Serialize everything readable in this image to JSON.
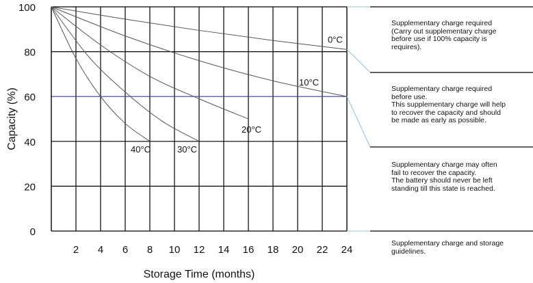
{
  "chart_data": {
    "type": "line",
    "xlabel": "Storage Time (months)",
    "ylabel": "Capacity (%)",
    "xlim": [
      0,
      24
    ],
    "ylim": [
      0,
      100
    ],
    "x_ticks": [
      "2",
      "4",
      "6",
      "8",
      "10",
      "12",
      "14",
      "16",
      "18",
      "20",
      "22",
      "24"
    ],
    "y_ticks": [
      "0",
      "20",
      "40",
      "60",
      "80",
      "100"
    ],
    "grid": true,
    "series": [
      {
        "name": "0°C",
        "x": [
          0,
          6,
          12,
          18,
          24
        ],
        "y": [
          100,
          94.5,
          89.5,
          85,
          81
        ]
      },
      {
        "name": "10°C",
        "x": [
          0,
          6,
          12,
          18,
          24
        ],
        "y": [
          100,
          87,
          76,
          67,
          60
        ]
      },
      {
        "name": "20°C",
        "x": [
          0,
          4,
          8,
          12,
          16
        ],
        "y": [
          100,
          83,
          69,
          59,
          50
        ]
      },
      {
        "name": "30°C",
        "x": [
          0,
          3,
          6,
          9,
          12
        ],
        "y": [
          100,
          78,
          62,
          49,
          40
        ]
      },
      {
        "name": "40°C",
        "x": [
          0,
          2,
          4,
          6,
          8
        ],
        "y": [
          100,
          77,
          60,
          48,
          40
        ]
      }
    ],
    "reference_lines": [
      80,
      60,
      40
    ],
    "reference_color": "#3a3aa8",
    "line_color": "#555555",
    "bracket_color": "#8fc6d8"
  },
  "notes": [
    "Supplementary charge required\n(Carry out supplementary charge\nbefore use if 100% capacity is\nrequires).",
    "Supplementary charge required\nbefore use.\nThis supplementary charge will help\nto recover the capacity and should\nbe made as early as possible.",
    "Supplementary charge may often\nfail to recover the capacity.\nThe battery should never be left\nstanding till this state is reached.",
    "Supplementary charge and storage\nguidelines."
  ]
}
